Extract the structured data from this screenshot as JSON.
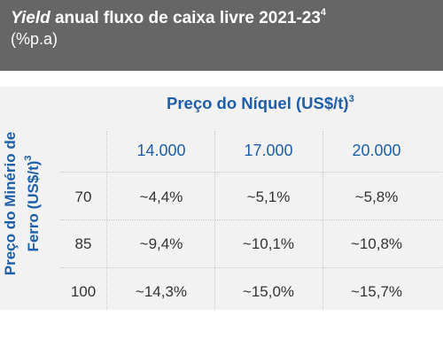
{
  "header": {
    "title_yield": "Yield",
    "title_rest": " anual fluxo de caixa livre 2021-23",
    "title_sup": "4",
    "subtitle": "(%p.a)"
  },
  "chart_data": {
    "type": "table",
    "column_axis_label": "Preço do Níquel (US$/t)",
    "column_axis_sup": "3",
    "row_axis_label_line1": "Preço do Minério de",
    "row_axis_label_line2": "Ferro (US$/t)",
    "row_axis_sup": "3",
    "columns": [
      "14.000",
      "17.000",
      "20.000"
    ],
    "rows": [
      "70",
      "85",
      "100"
    ],
    "cells": [
      [
        "~4,4%",
        "~5,1%",
        "~5,8%"
      ],
      [
        "~9,4%",
        "~10,1%",
        "~10,8%"
      ],
      [
        "~14,3%",
        "~15,0%",
        "~15,7%"
      ]
    ],
    "values": [
      [
        4.4,
        5.1,
        5.8
      ],
      [
        9.4,
        10.1,
        10.8
      ],
      [
        14.3,
        15.0,
        15.7
      ]
    ]
  },
  "colors": {
    "header_bg": "#666666",
    "panel_bg": "#f2f2f2",
    "accent_blue": "#1f5ea8",
    "text": "#333333"
  }
}
